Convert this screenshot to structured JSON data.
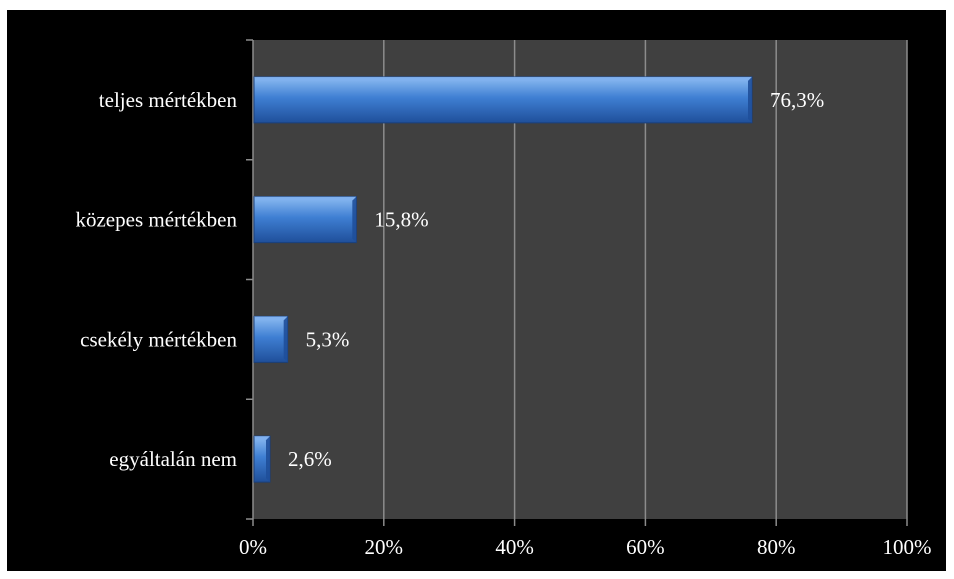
{
  "chart_data": {
    "type": "bar",
    "orientation": "horizontal",
    "categories": [
      "teljes mértékben",
      "közepes mértékben",
      "csekély mértékben",
      "egyáltalán nem"
    ],
    "values": [
      76.3,
      15.8,
      5.3,
      2.6
    ],
    "data_labels": [
      "76,3%",
      "15,8%",
      "5,3%",
      "2,6%"
    ],
    "x_ticks": [
      "0%",
      "20%",
      "40%",
      "60%",
      "80%",
      "100%"
    ],
    "xlim": [
      0,
      100
    ],
    "grid": true,
    "colors": {
      "background": "#000000",
      "plot_area": "#404040",
      "gridline": "#8c8c8c",
      "bar": "#3f7fd3",
      "bar_light": "#7fb0ee",
      "bar_dark": "#1f4f9a",
      "text": "#ffffff"
    }
  }
}
